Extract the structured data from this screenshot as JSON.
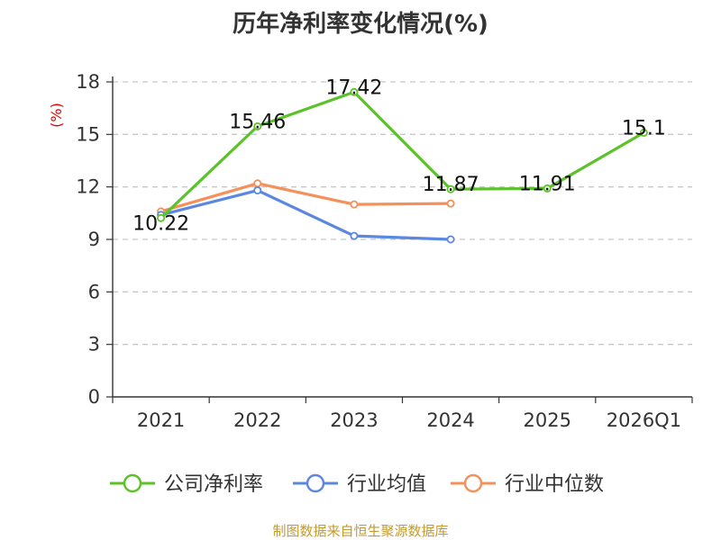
{
  "title": "历年净利率变化情况(%)",
  "source": "制图数据来自恒生聚源数据库",
  "chart_data": {
    "type": "line",
    "title": "历年净利率变化情况(%)",
    "ylabel": "(%)",
    "ylim": [
      0,
      18
    ],
    "yticks": [
      0,
      3,
      6,
      9,
      12,
      15,
      18
    ],
    "grid": true,
    "legend_position": "bottom",
    "categories": [
      "2021",
      "2022",
      "2023",
      "2024",
      "2025",
      "2026Q1"
    ],
    "series": [
      {
        "name": "公司净利率",
        "color": "#5cc22a",
        "values": [
          10.22,
          15.46,
          17.42,
          11.87,
          11.91,
          15.1
        ],
        "labels": [
          "10.22",
          "15.46",
          "17.42",
          "11.87",
          "11.91",
          "15.1"
        ]
      },
      {
        "name": "行业均值",
        "color": "#5b87e0",
        "values": [
          10.4,
          11.8,
          9.2,
          9.0,
          null,
          null
        ]
      },
      {
        "name": "行业中位数",
        "color": "#f5905a",
        "values": [
          10.6,
          12.2,
          11.0,
          11.05,
          null,
          null
        ]
      }
    ]
  }
}
